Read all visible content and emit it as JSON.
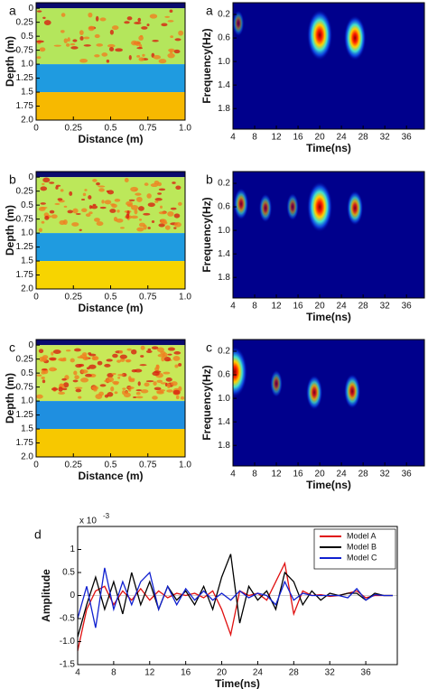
{
  "chart_data": [
    {
      "type": "layered_model",
      "label": "a",
      "xlabel": "Distance (m)",
      "ylabel": "Depth (m)",
      "xlim": [
        0,
        1
      ],
      "ylim": [
        -0.1,
        2.0
      ],
      "xticks": [
        0,
        0.25,
        0.5,
        0.75,
        {
          "value": 1,
          "label": "1.0"
        }
      ],
      "yticks": [
        0,
        0.25,
        0.5,
        0.75,
        {
          "value": 1,
          "label": "1.0"
        },
        1.25,
        1.5,
        1.75,
        {
          "value": 2,
          "label": "2.0"
        }
      ],
      "layers": [
        {
          "top": -0.1,
          "bottom": 0,
          "color": "#0a0a6e"
        },
        {
          "top": 0,
          "bottom": 1,
          "color": "#b4e65c"
        },
        {
          "top": 1,
          "bottom": 1.5,
          "color": "#1f9be0"
        },
        {
          "top": 1.5,
          "bottom": 2,
          "color": "#f7b900"
        }
      ]
    },
    {
      "type": "heatmap",
      "label": "a",
      "xlabel": "Time(ns)",
      "ylabel": "Frequency(Hz)",
      "xlim": [
        4,
        39.3
      ],
      "ylim": [
        0,
        2.15
      ],
      "xticks": [
        4,
        8,
        12,
        16,
        20,
        24,
        28,
        32,
        36
      ],
      "yticks": [
        0.2,
        0.6,
        {
          "value": 1,
          "label": "1.0"
        },
        1.4,
        1.8
      ],
      "peaks": [
        {
          "x": 20,
          "y": 0.55,
          "intensity": 1
        },
        {
          "x": 26.5,
          "y": 0.6,
          "intensity": 0.8
        },
        {
          "x": 5,
          "y": 0.35,
          "intensity": 0.15
        }
      ]
    },
    {
      "type": "layered_model",
      "label": "b",
      "xlabel": "Distance (m)",
      "ylabel": "Depth (m)",
      "xlim": [
        0,
        1
      ],
      "ylim": [
        -0.1,
        2.0
      ],
      "xticks": [
        0,
        0.25,
        0.5,
        0.75,
        {
          "value": 1,
          "label": "1.0"
        }
      ],
      "yticks": [
        0,
        0.25,
        0.5,
        0.75,
        {
          "value": 1,
          "label": "1.0"
        },
        1.25,
        1.5,
        1.75,
        {
          "value": 2,
          "label": "2.0"
        }
      ],
      "layers": [
        {
          "top": -0.1,
          "bottom": 0,
          "color": "#0a0a6e"
        },
        {
          "top": 0,
          "bottom": 1,
          "color": "#bce85a"
        },
        {
          "top": 1,
          "bottom": 1.5,
          "color": "#1f9be0"
        },
        {
          "top": 1.5,
          "bottom": 2,
          "color": "#f7d400"
        }
      ]
    },
    {
      "type": "heatmap",
      "label": "b",
      "xlabel": "Time(ns)",
      "ylabel": "Frequency(Hz)",
      "xlim": [
        4,
        39.3
      ],
      "ylim": [
        0,
        2.15
      ],
      "xticks": [
        4,
        8,
        12,
        16,
        20,
        24,
        28,
        32,
        36
      ],
      "yticks": [
        0.2,
        0.6,
        {
          "value": 1,
          "label": "1.0"
        },
        1.4,
        1.8
      ],
      "peaks": [
        {
          "x": 20,
          "y": 0.6,
          "intensity": 1
        },
        {
          "x": 26.5,
          "y": 0.62,
          "intensity": 0.45
        },
        {
          "x": 5.5,
          "y": 0.55,
          "intensity": 0.35
        },
        {
          "x": 10,
          "y": 0.62,
          "intensity": 0.25
        },
        {
          "x": 15,
          "y": 0.6,
          "intensity": 0.2
        }
      ]
    },
    {
      "type": "layered_model",
      "label": "c",
      "xlabel": "Distance (m)",
      "ylabel": "Depth (m)",
      "xlim": [
        0,
        1
      ],
      "ylim": [
        -0.1,
        2.0
      ],
      "xticks": [
        0,
        0.25,
        0.5,
        0.75,
        {
          "value": 1,
          "label": "1.0"
        }
      ],
      "yticks": [
        0,
        0.25,
        0.5,
        0.75,
        {
          "value": 1,
          "label": "1.0"
        },
        1.25,
        1.5,
        1.75,
        {
          "value": 2,
          "label": "2.0"
        }
      ],
      "layers": [
        {
          "top": -0.1,
          "bottom": 0,
          "color": "#0a0a6e"
        },
        {
          "top": 0,
          "bottom": 1,
          "color": "#c8e858"
        },
        {
          "top": 1,
          "bottom": 1.5,
          "color": "#1f8fe0"
        },
        {
          "top": 1.5,
          "bottom": 2,
          "color": "#f7c800"
        }
      ]
    },
    {
      "type": "heatmap",
      "label": "c",
      "xlabel": "Time(ns)",
      "ylabel": "Frequency(Hz)",
      "xlim": [
        4,
        39.3
      ],
      "ylim": [
        0,
        2.15
      ],
      "xticks": [
        4,
        8,
        12,
        16,
        20,
        24,
        28,
        32,
        36
      ],
      "yticks": [
        0.2,
        0.6,
        {
          "value": 1,
          "label": "1.0"
        },
        1.4,
        1.8
      ],
      "peaks": [
        {
          "x": 4.3,
          "y": 0.55,
          "intensity": 1
        },
        {
          "x": 19,
          "y": 0.9,
          "intensity": 0.45
        },
        {
          "x": 26,
          "y": 0.88,
          "intensity": 0.45
        },
        {
          "x": 12,
          "y": 0.75,
          "intensity": 0.2
        }
      ]
    },
    {
      "type": "line",
      "label": "d",
      "xlabel": "Time(ns)",
      "ylabel": "Amplitude",
      "y_multiplier": "x 10",
      "y_multiplier_exp": "-3",
      "xlim": [
        4,
        39.5
      ],
      "ylim": [
        -1.5,
        1.5
      ],
      "xticks": [
        4,
        8,
        12,
        16,
        20,
        24,
        28,
        32,
        36
      ],
      "yticks": [
        -1.5,
        {
          "value": -1,
          "label": "-1.0"
        },
        -0.5,
        0,
        0.5,
        1
      ],
      "legend": "upper right",
      "x": [
        4,
        5,
        6,
        7,
        8,
        9,
        10,
        11,
        12,
        13,
        14,
        15,
        16,
        17,
        18,
        19,
        20,
        21,
        22,
        23,
        24,
        25,
        26,
        27,
        28,
        29,
        30,
        31,
        32,
        33,
        34,
        35,
        36,
        37,
        38,
        39
      ],
      "series": [
        {
          "name": "Model A",
          "color": "#e01010",
          "values": [
            -1.2,
            -0.3,
            0.1,
            0.2,
            -0.2,
            0.1,
            -0.1,
            0.15,
            -0.1,
            0.1,
            -0.05,
            0.05,
            0,
            0.05,
            -0.05,
            0.1,
            -0.3,
            -0.85,
            0.1,
            0,
            0.05,
            -0.1,
            0.3,
            0.7,
            -0.4,
            0.1,
            0,
            0.02,
            -0.02,
            0,
            0.05,
            0.1,
            -0.05,
            0,
            0,
            0
          ]
        },
        {
          "name": "Model B",
          "color": "#000000",
          "values": [
            -0.9,
            -0.2,
            0.4,
            -0.3,
            0.3,
            -0.4,
            0.5,
            -0.2,
            0.3,
            -0.3,
            0.2,
            -0.1,
            0.1,
            -0.2,
            0.2,
            -0.3,
            0.4,
            0.9,
            -0.6,
            0.2,
            -0.1,
            0.1,
            -0.3,
            0.5,
            0.3,
            -0.2,
            0.1,
            -0.1,
            0.05,
            0,
            0.05,
            0.05,
            -0.1,
            0.05,
            0,
            0
          ]
        },
        {
          "name": "Model C",
          "color": "#1020d0",
          "values": [
            -0.5,
            0.2,
            -0.7,
            0.6,
            -0.3,
            0.3,
            -0.2,
            0.3,
            0.5,
            -0.3,
            0.2,
            -0.2,
            0.15,
            -0.1,
            0.1,
            -0.1,
            0.05,
            -0.1,
            0.1,
            -0.05,
            0.05,
            0,
            -0.2,
            0.3,
            -0.1,
            0.05,
            0,
            0,
            0,
            0,
            -0.05,
            0.15,
            -0.1,
            0.02,
            0,
            0
          ]
        }
      ]
    }
  ]
}
